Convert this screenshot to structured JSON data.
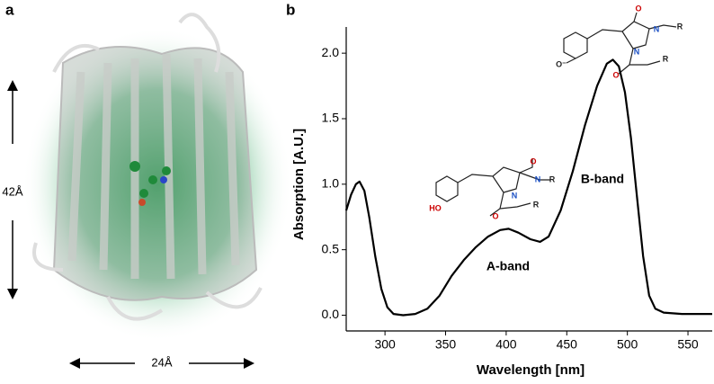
{
  "panel_a": {
    "label": "a",
    "height_label": "42Å",
    "width_label": "24Å"
  },
  "structures": [
    {
      "atoms": [
        "HO",
        "O",
        "N",
        "R",
        "N",
        "O",
        "R"
      ]
    },
    {
      "atoms": [
        "O⁻",
        "O",
        "N",
        "R",
        "N",
        "O",
        "R"
      ]
    }
  ],
  "chart_data": {
    "type": "line",
    "panel_label": "b",
    "x_label": "Wavelength [nm]",
    "y_label": "Absorption [A.U.]",
    "annotations": [
      "A-band",
      "B-band"
    ],
    "x": [
      268,
      272,
      276,
      279,
      283,
      287,
      292,
      297,
      302,
      307,
      315,
      325,
      335,
      345,
      355,
      365,
      375,
      385,
      395,
      402,
      410,
      420,
      428,
      435,
      445,
      455,
      465,
      475,
      483,
      488,
      493,
      498,
      503,
      508,
      513,
      518,
      523,
      530,
      545,
      570
    ],
    "series": [
      {
        "color": "#000000",
        "values": [
          0.8,
          0.92,
          1.0,
          1.02,
          0.95,
          0.75,
          0.45,
          0.2,
          0.06,
          0.01,
          0.0,
          0.01,
          0.05,
          0.15,
          0.3,
          0.42,
          0.52,
          0.6,
          0.65,
          0.66,
          0.63,
          0.58,
          0.56,
          0.6,
          0.8,
          1.1,
          1.45,
          1.75,
          1.92,
          1.95,
          1.9,
          1.7,
          1.35,
          0.9,
          0.45,
          0.15,
          0.05,
          0.02,
          0.01,
          0.01
        ]
      }
    ],
    "xlim": [
      268,
      570
    ],
    "ylim": [
      -0.12,
      2.2
    ],
    "xticks": [
      300,
      350,
      400,
      450,
      500,
      550
    ],
    "yticks": [
      {
        "value": 0,
        "label": "0.0"
      },
      {
        "value": 0.5,
        "label": "0.5"
      },
      {
        "value": 1,
        "label": "1.0"
      },
      {
        "value": 1.5,
        "label": "1.5"
      },
      {
        "value": 2,
        "label": "2.0"
      }
    ]
  }
}
